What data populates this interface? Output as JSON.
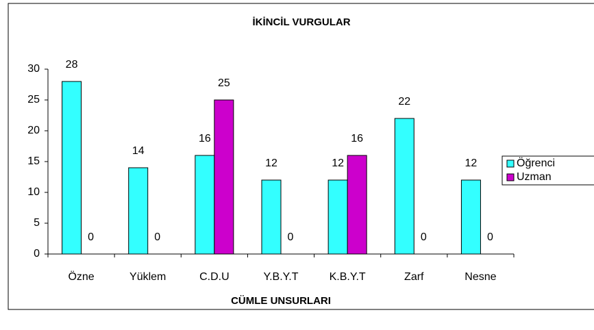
{
  "chart_data": {
    "type": "bar",
    "title": "İKİNCİL VURGULAR",
    "x_label": "CÜMLE UNSURLARI",
    "categories": [
      "Özne",
      "Yüklem",
      "C.D.U",
      "Y.B.Y.T",
      "K.B.Y.T",
      "Zarf",
      "Nesne"
    ],
    "series": [
      {
        "name": "Öğrenci",
        "color": "#33ffff",
        "values": [
          28,
          14,
          16,
          12,
          12,
          22,
          12
        ]
      },
      {
        "name": "Uzman",
        "color": "#cc00cc",
        "values": [
          0,
          0,
          25,
          0,
          16,
          0,
          0
        ]
      }
    ],
    "ylim": [
      0,
      30
    ],
    "yticks": [
      0,
      5,
      10,
      15,
      20,
      25,
      30
    ],
    "grid": false,
    "legend": "right"
  }
}
